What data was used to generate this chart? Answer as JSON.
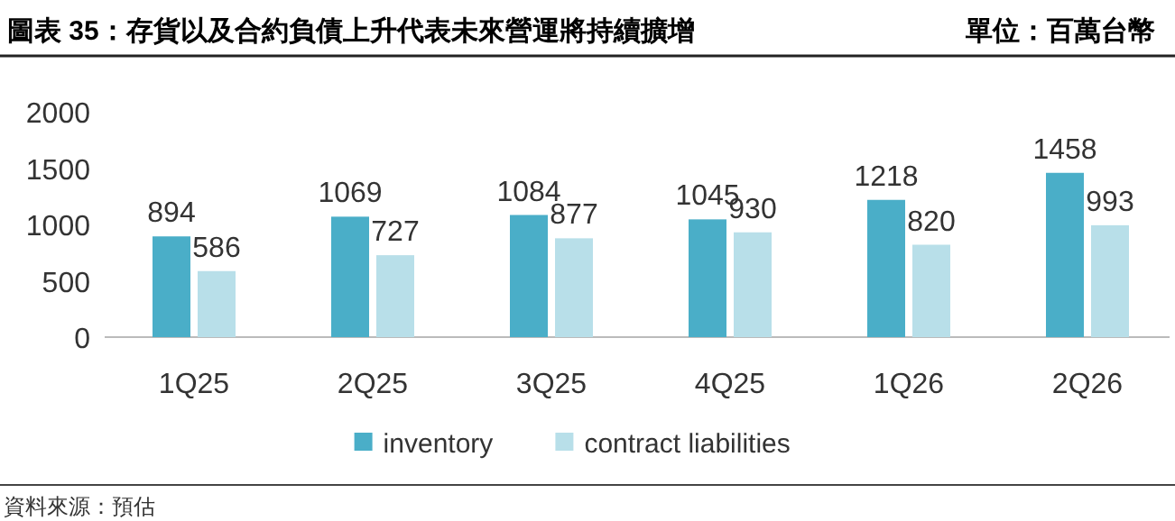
{
  "chart_data": {
    "type": "bar",
    "title": "圖表 35：存貨以及合約負債上升代表未來營運將持續擴增",
    "subtitle": "單位：百萬台幣",
    "categories": [
      "1Q25",
      "2Q25",
      "3Q25",
      "4Q25",
      "1Q26",
      "2Q26"
    ],
    "series": [
      {
        "name": "inventory",
        "color": "#4aaec8",
        "values": [
          894,
          1069,
          1084,
          1045,
          1218,
          1458
        ]
      },
      {
        "name": "contract liabilities",
        "color": "#b8dfe9",
        "values": [
          586,
          727,
          877,
          930,
          820,
          993
        ]
      }
    ],
    "ylim": [
      0,
      2000
    ],
    "yticks": [
      0,
      500,
      1000,
      1500,
      2000
    ],
    "grid": false,
    "legend": "bottom",
    "data_labels": true,
    "annotations": [
      "資料來源：預估"
    ]
  }
}
